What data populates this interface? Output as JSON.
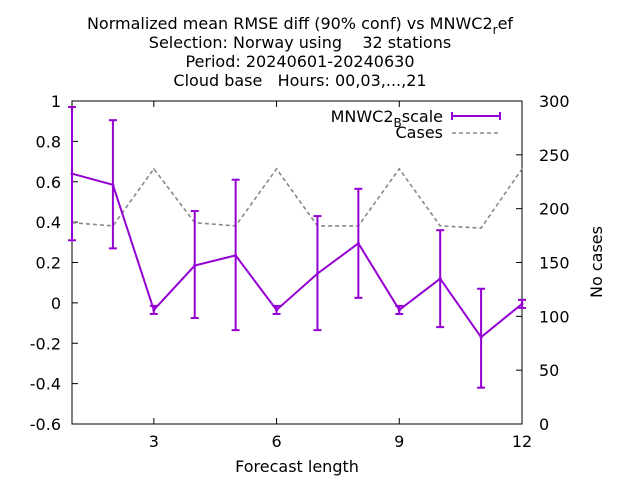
{
  "chart_data": {
    "type": "line",
    "title_lines": [
      "Normalized mean RMSE diff (90% conf) vs MNWC2",
      "Selection: Norway using    32 stations",
      "Period: 20240601-20240630",
      "Cloud base   Hours: 00,03,...,21"
    ],
    "title_sub": "r",
    "title_tail": "ef",
    "xlabel": "Forecast length",
    "ylabel": "",
    "y2label": "No cases",
    "xlim": [
      1,
      12
    ],
    "ylim": [
      -0.6,
      1
    ],
    "y2lim": [
      0,
      300
    ],
    "xticks": [
      "3",
      "6",
      "9",
      "12"
    ],
    "xtick_values": [
      3,
      6,
      9,
      12
    ],
    "yticks": [
      "-0.6",
      "-0.4",
      "-0.2",
      "0",
      "0.2",
      "0.4",
      "0.6",
      "0.8",
      "1"
    ],
    "ytick_values": [
      -0.6,
      -0.4,
      -0.2,
      0,
      0.2,
      0.4,
      0.6,
      0.8,
      1
    ],
    "y2ticks": [
      "0",
      "50",
      "100",
      "150",
      "200",
      "250",
      "300"
    ],
    "y2tick_values": [
      0,
      50,
      100,
      150,
      200,
      250,
      300
    ],
    "grid": false,
    "legend_position": "top-right",
    "series": [
      {
        "name_main": "MNWC2",
        "name_sub": "B",
        "name_tail": "scale",
        "color": "#9400d3",
        "axis": "y1",
        "x": [
          1,
          2,
          3,
          4,
          5,
          6,
          7,
          8,
          9,
          10,
          11,
          12
        ],
        "y": [
          0.64,
          0.585,
          -0.035,
          0.185,
          0.235,
          -0.035,
          0.145,
          0.295,
          -0.035,
          0.12,
          -0.17,
          -0.005
        ],
        "err_low": [
          0.31,
          0.27,
          -0.055,
          -0.075,
          -0.135,
          -0.055,
          -0.135,
          0.025,
          -0.055,
          -0.12,
          -0.42,
          -0.025
        ],
        "err_high": [
          0.97,
          0.905,
          -0.015,
          0.455,
          0.61,
          -0.015,
          0.43,
          0.565,
          -0.015,
          0.36,
          0.07,
          0.015
        ]
      },
      {
        "name": "Cases",
        "color": "#888888",
        "axis": "y2",
        "x": [
          1,
          2,
          3,
          4,
          5,
          6,
          7,
          8,
          9,
          10,
          11,
          12
        ],
        "y": [
          187,
          184,
          237,
          187,
          184,
          237,
          184,
          184,
          237,
          184,
          182,
          237
        ]
      }
    ]
  }
}
